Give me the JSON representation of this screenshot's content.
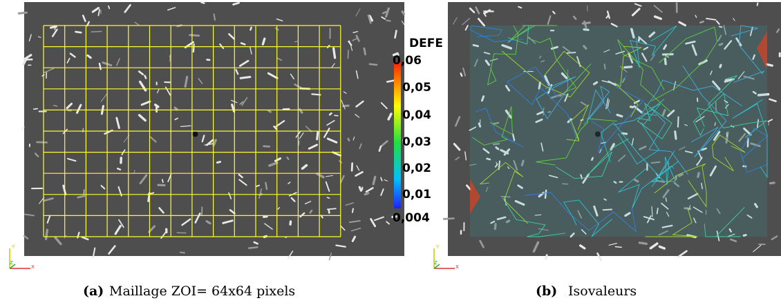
{
  "panels": [
    {
      "label": "(a)",
      "caption": "Maillage ZOI= 64x64 pixels"
    },
    {
      "label": "(b)",
      "caption": "Isovaleurs"
    }
  ],
  "colorbar": {
    "title": "DEFE",
    "labels": [
      "0,06",
      "0,05",
      "0,04",
      "0,03",
      "0,02",
      "0,01",
      "0,004"
    ]
  },
  "axes": {
    "y": "Y",
    "z": "Z",
    "x": "X"
  }
}
